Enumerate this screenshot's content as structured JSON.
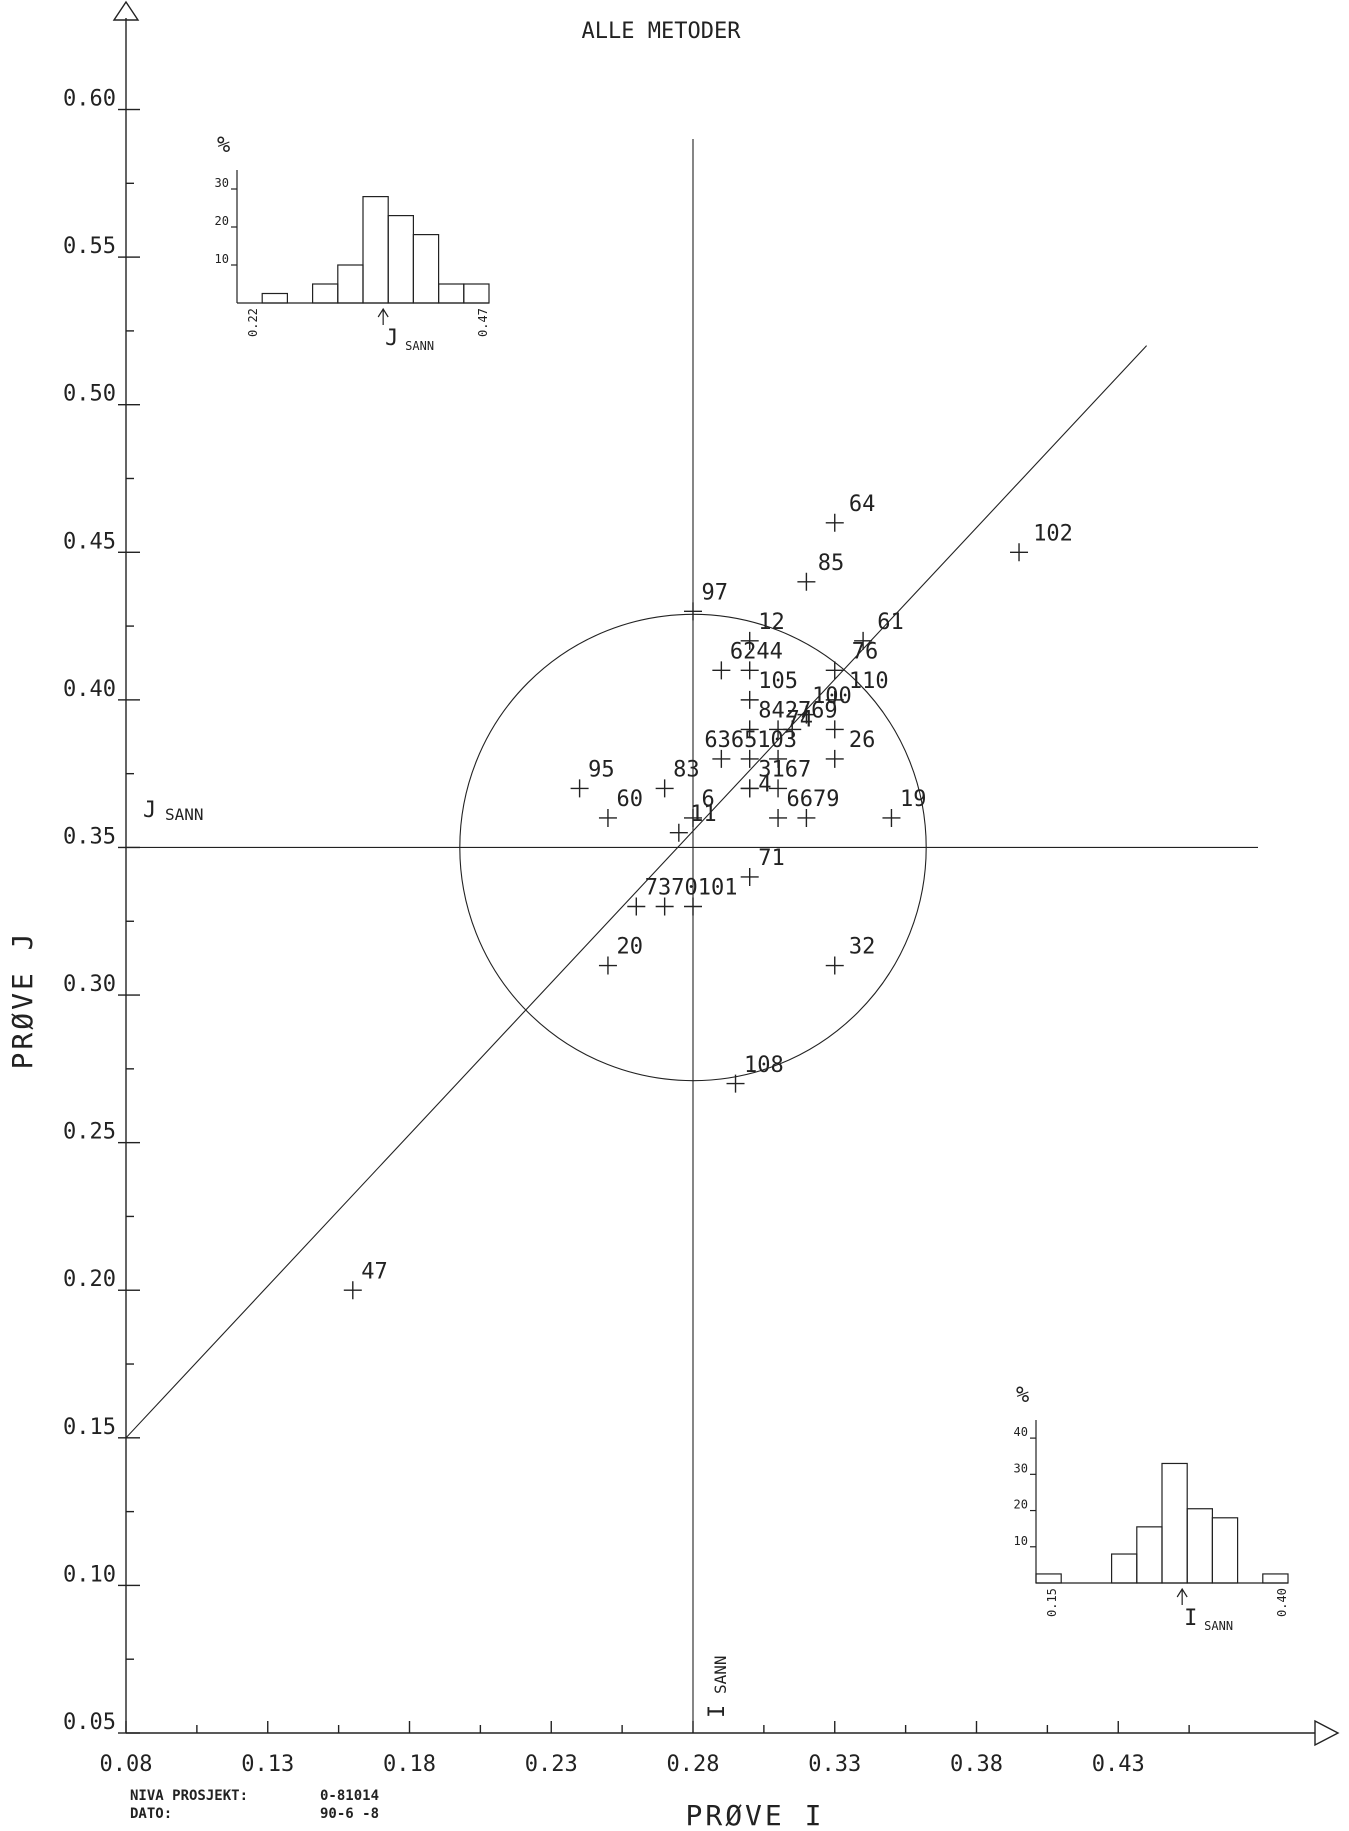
{
  "chart_data": {
    "type": "scatter",
    "title": "ALLE METODER",
    "xlabel": "PRØVE I",
    "ylabel": "PRØVE J",
    "xlim": [
      0.08,
      0.48
    ],
    "ylim": [
      0.05,
      0.61
    ],
    "x_ticks": [
      "0.08",
      "0.13",
      "0.18",
      "0.23",
      "0.28",
      "0.33",
      "0.38",
      "0.43"
    ],
    "y_ticks": [
      "0.05",
      "0.10",
      "0.15",
      "0.20",
      "0.25",
      "0.30",
      "0.35",
      "0.40",
      "0.45",
      "0.50",
      "0.55",
      "0.60"
    ],
    "i_sann": 0.28,
    "j_sann": 0.35,
    "i_sann_label": "I",
    "j_sann_label": "J",
    "sann_sub": "SANN",
    "circle_radius_j": 0.079,
    "diagonal": {
      "x1": 0.08,
      "y1": 0.15,
      "x2": 0.44,
      "y2": 0.52
    },
    "points": [
      {
        "label": "64",
        "x": 0.33,
        "y": 0.46
      },
      {
        "label": "102",
        "x": 0.395,
        "y": 0.45
      },
      {
        "label": "85",
        "x": 0.32,
        "y": 0.44
      },
      {
        "label": "97",
        "x": 0.28,
        "y": 0.43
      },
      {
        "label": "12",
        "x": 0.3,
        "y": 0.42
      },
      {
        "label": "61",
        "x": 0.34,
        "y": 0.42
      },
      {
        "label": "62",
        "x": 0.29,
        "y": 0.41
      },
      {
        "label": "44",
        "x": 0.3,
        "y": 0.41
      },
      {
        "label": "76",
        "x": 0.33,
        "y": 0.41
      },
      {
        "label": "110",
        "x": 0.33,
        "y": 0.4
      },
      {
        "label": "105",
        "x": 0.3,
        "y": 0.4
      },
      {
        "label": "100",
        "x": 0.33,
        "y": 0.39
      },
      {
        "label": "84",
        "x": 0.3,
        "y": 0.39
      },
      {
        "label": "27",
        "x": 0.31,
        "y": 0.39
      },
      {
        "label": "69",
        "x": 0.32,
        "y": 0.395
      },
      {
        "label": "74",
        "x": 0.315,
        "y": 0.39
      },
      {
        "label": "26",
        "x": 0.33,
        "y": 0.38
      },
      {
        "label": "63",
        "x": 0.29,
        "y": 0.38
      },
      {
        "label": "65",
        "x": 0.3,
        "y": 0.38
      },
      {
        "label": "103",
        "x": 0.31,
        "y": 0.38
      },
      {
        "label": "31",
        "x": 0.3,
        "y": 0.37
      },
      {
        "label": "67",
        "x": 0.31,
        "y": 0.37
      },
      {
        "label": "95",
        "x": 0.24,
        "y": 0.37
      },
      {
        "label": "83",
        "x": 0.27,
        "y": 0.37
      },
      {
        "label": "4",
        "x": 0.3,
        "y": 0.37
      },
      {
        "label": "60",
        "x": 0.25,
        "y": 0.36
      },
      {
        "label": "6",
        "x": 0.28,
        "y": 0.36
      },
      {
        "label": "66",
        "x": 0.31,
        "y": 0.36
      },
      {
        "label": "79",
        "x": 0.32,
        "y": 0.36
      },
      {
        "label": "19",
        "x": 0.35,
        "y": 0.36
      },
      {
        "label": "11",
        "x": 0.275,
        "y": 0.355
      },
      {
        "label": "71",
        "x": 0.3,
        "y": 0.34
      },
      {
        "label": "73",
        "x": 0.26,
        "y": 0.33
      },
      {
        "label": "70",
        "x": 0.27,
        "y": 0.33
      },
      {
        "label": "101",
        "x": 0.28,
        "y": 0.33
      },
      {
        "label": "20",
        "x": 0.25,
        "y": 0.31
      },
      {
        "label": "32",
        "x": 0.33,
        "y": 0.31
      },
      {
        "label": "108",
        "x": 0.295,
        "y": 0.27
      },
      {
        "label": "47",
        "x": 0.16,
        "y": 0.2
      }
    ],
    "label_positions": [
      {
        "text": "64",
        "x": 0.335,
        "y": 0.464
      },
      {
        "text": "102",
        "x": 0.4,
        "y": 0.454
      },
      {
        "text": "85",
        "x": 0.324,
        "y": 0.444
      },
      {
        "text": "97",
        "x": 0.283,
        "y": 0.434
      },
      {
        "text": "12",
        "x": 0.303,
        "y": 0.424
      },
      {
        "text": "61",
        "x": 0.345,
        "y": 0.424
      },
      {
        "text": "6244",
        "x": 0.293,
        "y": 0.414
      },
      {
        "text": "76",
        "x": 0.336,
        "y": 0.414
      },
      {
        "text": "105",
        "x": 0.303,
        "y": 0.404
      },
      {
        "text": "110",
        "x": 0.335,
        "y": 0.404
      },
      {
        "text": "100",
        "x": 0.322,
        "y": 0.399
      },
      {
        "text": "842769",
        "x": 0.303,
        "y": 0.394
      },
      {
        "text": "74",
        "x": 0.313,
        "y": 0.391
      },
      {
        "text": "6365103",
        "x": 0.284,
        "y": 0.384
      },
      {
        "text": "26",
        "x": 0.335,
        "y": 0.384
      },
      {
        "text": "95",
        "x": 0.243,
        "y": 0.374
      },
      {
        "text": "83",
        "x": 0.273,
        "y": 0.374
      },
      {
        "text": "3167",
        "x": 0.303,
        "y": 0.374
      },
      {
        "text": "4",
        "x": 0.303,
        "y": 0.369
      },
      {
        "text": "60",
        "x": 0.253,
        "y": 0.364
      },
      {
        "text": "6",
        "x": 0.283,
        "y": 0.364
      },
      {
        "text": "6679",
        "x": 0.313,
        "y": 0.364
      },
      {
        "text": "19",
        "x": 0.353,
        "y": 0.364
      },
      {
        "text": "11",
        "x": 0.279,
        "y": 0.359
      },
      {
        "text": "71",
        "x": 0.303,
        "y": 0.344
      },
      {
        "text": "7370101",
        "x": 0.263,
        "y": 0.334
      },
      {
        "text": "20",
        "x": 0.253,
        "y": 0.314
      },
      {
        "text": "32",
        "x": 0.335,
        "y": 0.314
      },
      {
        "text": "108",
        "x": 0.298,
        "y": 0.274
      },
      {
        "text": "47",
        "x": 0.163,
        "y": 0.204
      }
    ],
    "hist_j": {
      "ylabel": "%",
      "y_ticks": [
        "10",
        "20",
        "30"
      ],
      "ymax": 35,
      "x_labels": [
        "0.22",
        "0.47"
      ],
      "sann_letter": "J",
      "sann_sub": "SANN",
      "values": [
        0,
        2.5,
        0,
        5,
        10,
        28,
        23,
        18,
        5,
        5
      ]
    },
    "hist_i": {
      "ylabel": "%",
      "y_ticks": [
        "10",
        "20",
        "30",
        "40"
      ],
      "ymax": 45,
      "x_labels": [
        "0.15",
        "0.40"
      ],
      "sann_letter": "I",
      "sann_sub": "SANN",
      "values": [
        2.5,
        0,
        0,
        8,
        15.5,
        33,
        20.5,
        18,
        0,
        2.5
      ]
    }
  },
  "footer": {
    "project_label": "NIVA PROSJEKT:",
    "project_value": "0-81014",
    "date_label": "DATO:",
    "date_value": "90-6 -8"
  }
}
